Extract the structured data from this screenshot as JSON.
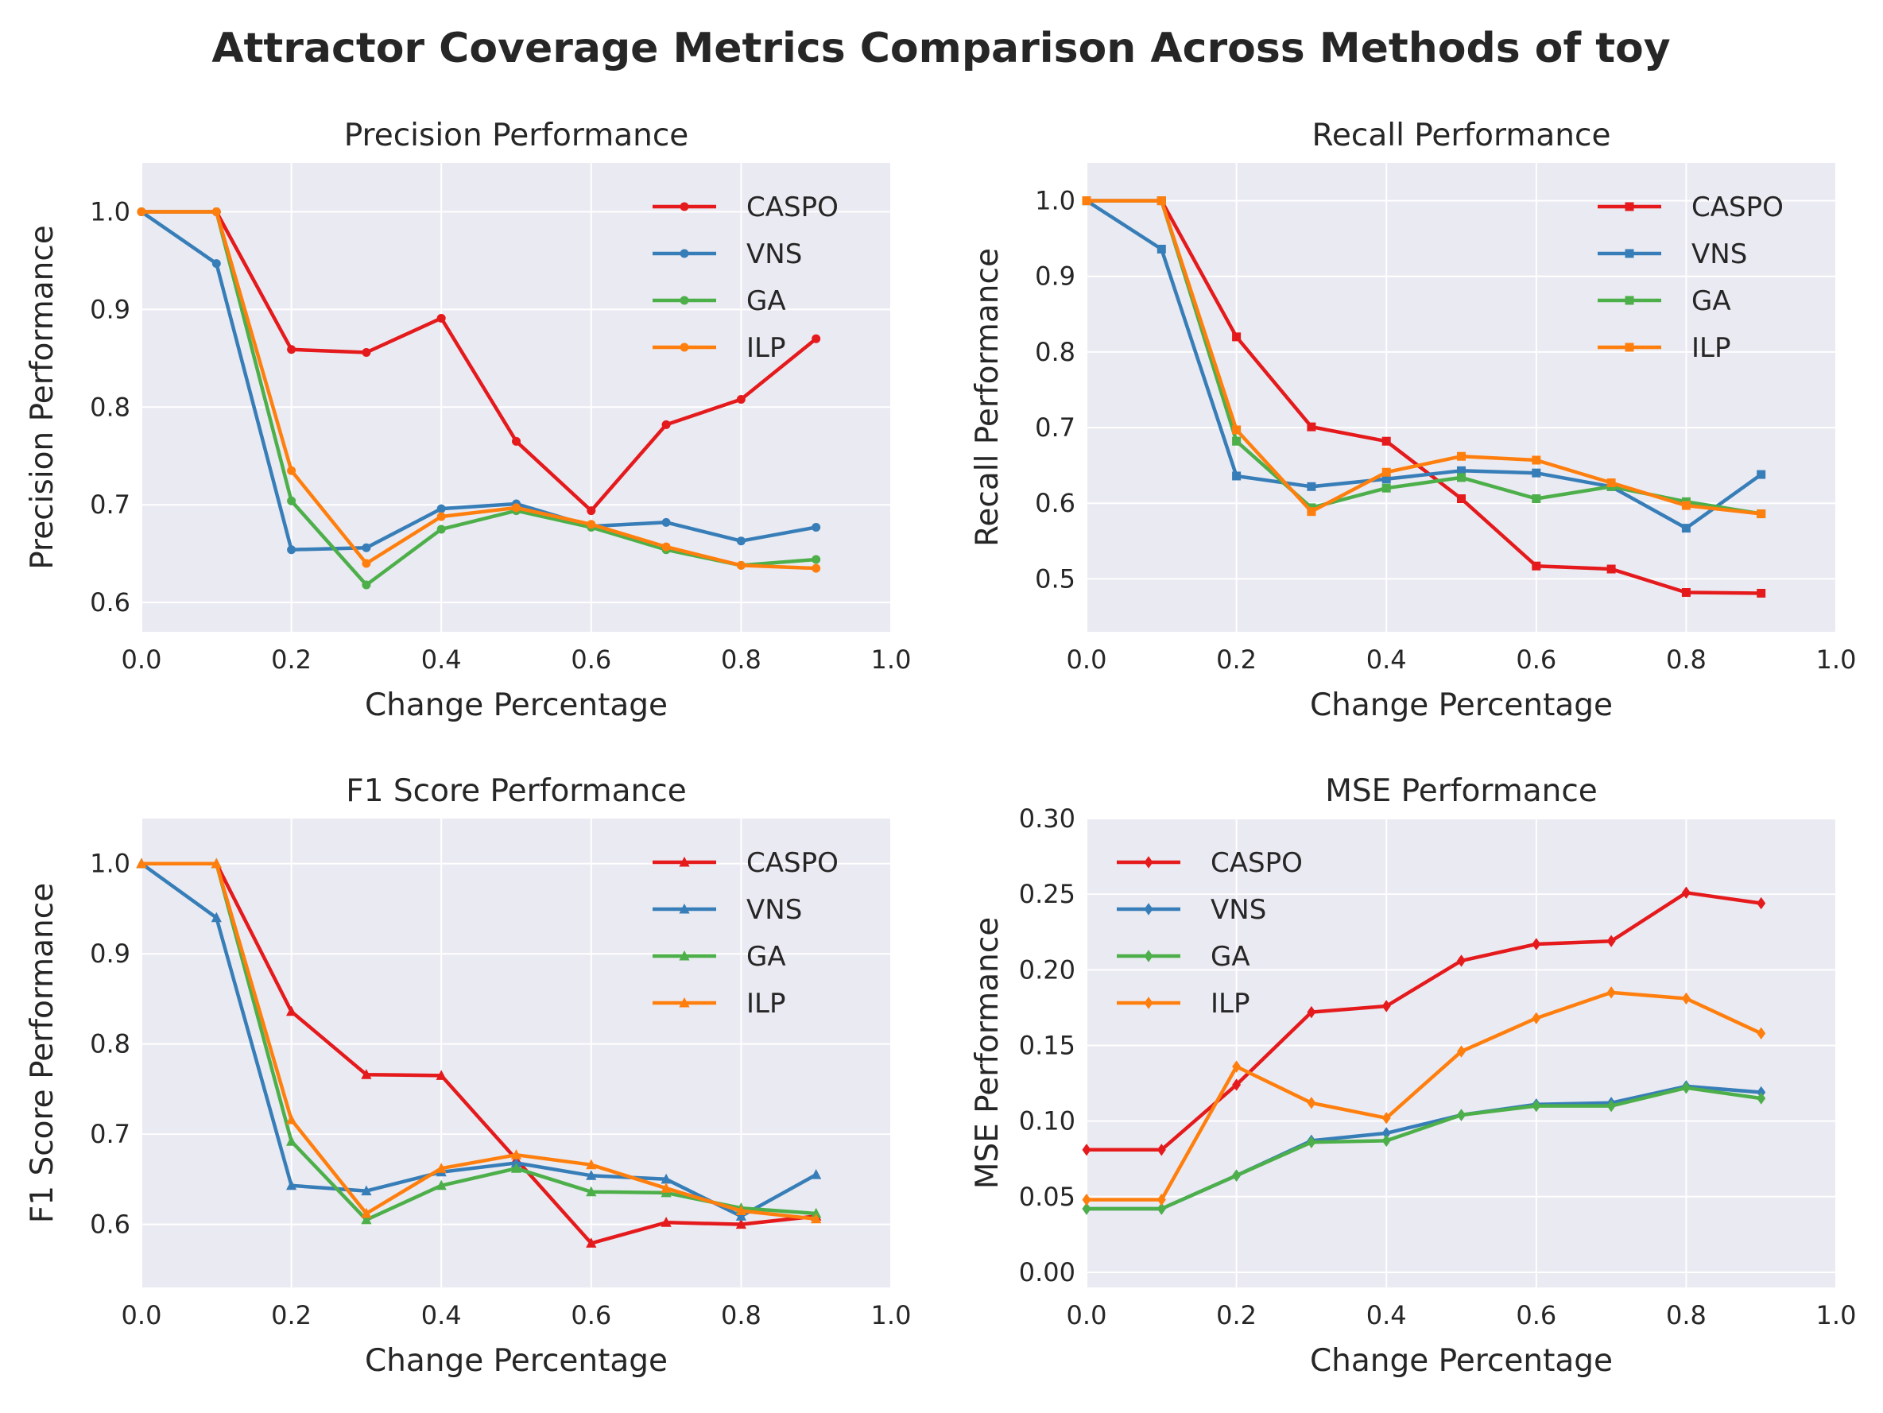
{
  "title": "Attractor Coverage Metrics Comparison Across Methods of toy",
  "colors": {
    "CASPO": "#e41a1c",
    "VNS": "#377eb8",
    "GA": "#4daf4a",
    "ILP": "#ff7f0e"
  },
  "chart_data": [
    {
      "type": "line",
      "title": "Precision Performance",
      "xlabel": "Change Percentage",
      "ylabel": "Precision Performance",
      "xlim": [
        0,
        1.0
      ],
      "ylim": [
        0.57,
        1.05
      ],
      "xticks": [
        "0.0",
        "0.2",
        "0.4",
        "0.6",
        "0.8",
        "1.0"
      ],
      "yticks": [
        "0.6",
        "0.7",
        "0.8",
        "0.9",
        "1.0"
      ],
      "marker": "circle",
      "legend_position": "top-right",
      "grid": true,
      "x": [
        0.0,
        0.1,
        0.2,
        0.3,
        0.4,
        0.5,
        0.6,
        0.7,
        0.8,
        0.9
      ],
      "series": [
        {
          "name": "CASPO",
          "values": [
            1.0,
            1.0,
            0.859,
            0.856,
            0.891,
            0.765,
            0.694,
            0.782,
            0.808,
            0.87
          ]
        },
        {
          "name": "VNS",
          "values": [
            1.0,
            0.947,
            0.654,
            0.656,
            0.696,
            0.701,
            0.678,
            0.682,
            0.663,
            0.677
          ]
        },
        {
          "name": "GA",
          "values": [
            1.0,
            1.0,
            0.704,
            0.618,
            0.675,
            0.694,
            0.677,
            0.654,
            0.638,
            0.644
          ]
        },
        {
          "name": "ILP",
          "values": [
            1.0,
            1.0,
            0.735,
            0.64,
            0.688,
            0.697,
            0.68,
            0.657,
            0.638,
            0.635
          ]
        }
      ]
    },
    {
      "type": "line",
      "title": "Recall Performance",
      "xlabel": "Change Percentage",
      "ylabel": "Recall Performance",
      "xlim": [
        0,
        1.0
      ],
      "ylim": [
        0.43,
        1.05
      ],
      "xticks": [
        "0.0",
        "0.2",
        "0.4",
        "0.6",
        "0.8",
        "1.0"
      ],
      "yticks": [
        "0.5",
        "0.6",
        "0.7",
        "0.8",
        "0.9",
        "1.0"
      ],
      "marker": "square",
      "legend_position": "top-right",
      "grid": true,
      "x": [
        0.0,
        0.1,
        0.2,
        0.3,
        0.4,
        0.5,
        0.6,
        0.7,
        0.8,
        0.9
      ],
      "series": [
        {
          "name": "CASPO",
          "values": [
            1.0,
            1.0,
            0.82,
            0.701,
            0.682,
            0.606,
            0.517,
            0.513,
            0.482,
            0.481
          ]
        },
        {
          "name": "VNS",
          "values": [
            1.0,
            0.936,
            0.636,
            0.622,
            0.632,
            0.643,
            0.64,
            0.622,
            0.567,
            0.638
          ]
        },
        {
          "name": "GA",
          "values": [
            1.0,
            1.0,
            0.682,
            0.594,
            0.62,
            0.634,
            0.606,
            0.622,
            0.602,
            0.586
          ]
        },
        {
          "name": "ILP",
          "values": [
            1.0,
            1.0,
            0.697,
            0.589,
            0.641,
            0.662,
            0.657,
            0.627,
            0.597,
            0.586
          ]
        }
      ]
    },
    {
      "type": "line",
      "title": "F1 Score Performance",
      "xlabel": "Change Percentage",
      "ylabel": "F1 Score Performance",
      "xlim": [
        0,
        1.0
      ],
      "ylim": [
        0.53,
        1.05
      ],
      "xticks": [
        "0.0",
        "0.2",
        "0.4",
        "0.6",
        "0.8",
        "1.0"
      ],
      "yticks": [
        "0.6",
        "0.7",
        "0.8",
        "0.9",
        "1.0"
      ],
      "marker": "triangle",
      "legend_position": "top-right",
      "grid": true,
      "x": [
        0.0,
        0.1,
        0.2,
        0.3,
        0.4,
        0.5,
        0.6,
        0.7,
        0.8,
        0.9
      ],
      "series": [
        {
          "name": "CASPO",
          "values": [
            1.0,
            1.0,
            0.836,
            0.766,
            0.765,
            0.672,
            0.579,
            0.602,
            0.6,
            0.609
          ]
        },
        {
          "name": "VNS",
          "values": [
            1.0,
            0.94,
            0.643,
            0.637,
            0.658,
            0.668,
            0.654,
            0.65,
            0.609,
            0.655
          ]
        },
        {
          "name": "GA",
          "values": [
            1.0,
            1.0,
            0.692,
            0.605,
            0.643,
            0.662,
            0.636,
            0.635,
            0.618,
            0.612
          ]
        },
        {
          "name": "ILP",
          "values": [
            1.0,
            1.0,
            0.716,
            0.612,
            0.662,
            0.677,
            0.666,
            0.64,
            0.615,
            0.606
          ]
        }
      ]
    },
    {
      "type": "line",
      "title": "MSE Performance",
      "xlabel": "Change Percentage",
      "ylabel": "MSE Performance",
      "xlim": [
        0,
        1.0
      ],
      "ylim": [
        -0.01,
        0.3
      ],
      "xticks": [
        "0.0",
        "0.2",
        "0.4",
        "0.6",
        "0.8",
        "1.0"
      ],
      "yticks": [
        "0.00",
        "0.05",
        "0.10",
        "0.15",
        "0.20",
        "0.25",
        "0.30"
      ],
      "marker": "diamond",
      "legend_position": "top-left",
      "grid": true,
      "x": [
        0.0,
        0.1,
        0.2,
        0.3,
        0.4,
        0.5,
        0.6,
        0.7,
        0.8,
        0.9
      ],
      "series": [
        {
          "name": "CASPO",
          "values": [
            0.081,
            0.081,
            0.124,
            0.172,
            0.176,
            0.206,
            0.217,
            0.219,
            0.251,
            0.244
          ]
        },
        {
          "name": "VNS",
          "values": [
            0.042,
            0.042,
            0.064,
            0.087,
            0.092,
            0.104,
            0.111,
            0.112,
            0.123,
            0.119
          ]
        },
        {
          "name": "GA",
          "values": [
            0.042,
            0.042,
            0.064,
            0.086,
            0.087,
            0.104,
            0.11,
            0.11,
            0.122,
            0.115
          ]
        },
        {
          "name": "ILP",
          "values": [
            0.048,
            0.048,
            0.136,
            0.112,
            0.102,
            0.146,
            0.168,
            0.185,
            0.181,
            0.158
          ]
        }
      ]
    }
  ]
}
